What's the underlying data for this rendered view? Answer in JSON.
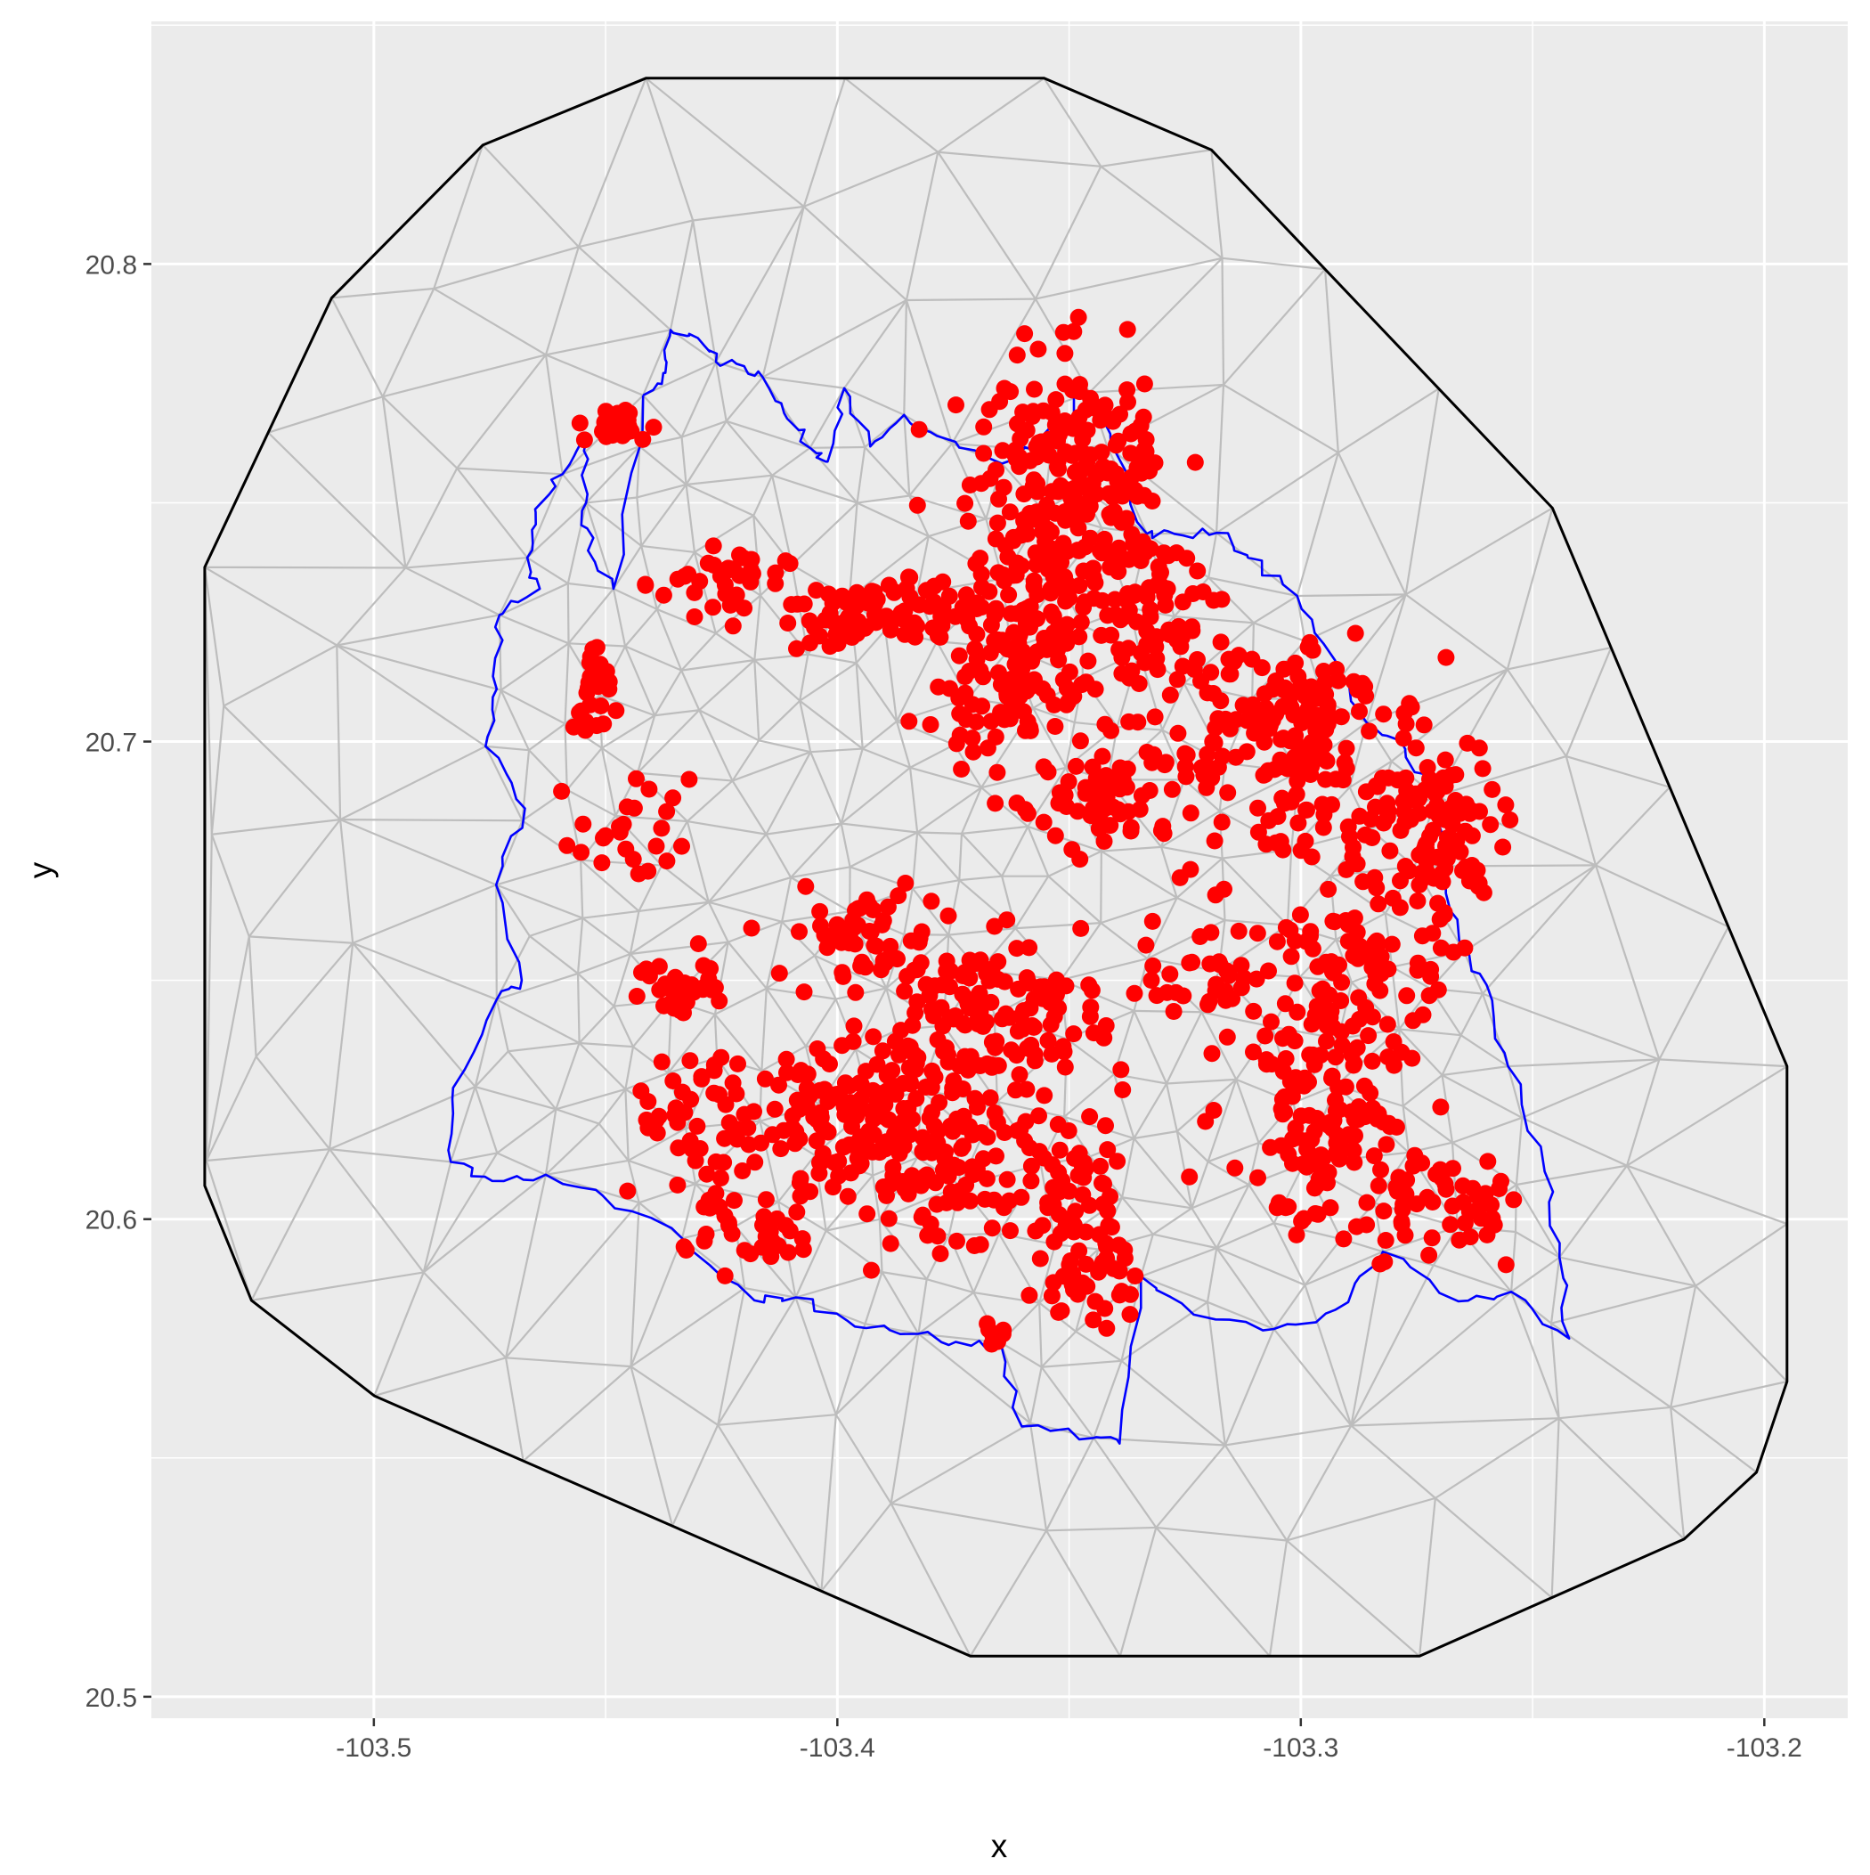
{
  "chart_data": {
    "type": "scatter",
    "xlabel": "x",
    "ylabel": "y",
    "xlim": [
      -103.548,
      -103.182
    ],
    "ylim": [
      20.4955,
      20.8508
    ],
    "x_ticks": [
      -103.5,
      -103.4,
      -103.3,
      -103.2
    ],
    "x_tick_labels": [
      "-103.5",
      "-103.4",
      "-103.3",
      "-103.2"
    ],
    "y_ticks": [
      20.5,
      20.6,
      20.7,
      20.8
    ],
    "y_tick_labels": [
      "20.5",
      "20.6",
      "20.7",
      "20.8"
    ],
    "grid": true,
    "legend": "none",
    "colors": {
      "panel": "#ebebeb",
      "grid": "#ffffff",
      "mesh": "#bdbdbd",
      "hull": "#000000",
      "boundary": "#0000ff",
      "points": "#ff0000"
    },
    "series": [
      {
        "role": "outer-hull",
        "kind": "polygon",
        "x": [
          -103.5365,
          -103.5091,
          -103.4765,
          -103.4413,
          -103.3554,
          -103.3193,
          -103.2457,
          -103.1951,
          -103.1951,
          -103.2017,
          -103.2173,
          -103.2744,
          -103.3713,
          -103.4999,
          -103.5264,
          -103.5365
        ],
        "y": [
          20.7365,
          20.7929,
          20.8249,
          20.8389,
          20.8389,
          20.8239,
          20.7489,
          20.632,
          20.566,
          20.547,
          20.533,
          20.5085,
          20.5085,
          20.563,
          20.583,
          20.607
        ]
      },
      {
        "role": "region-boundary",
        "kind": "line",
        "x": [
          -103.4419,
          -103.4371,
          -103.436,
          -103.4301,
          -103.4262,
          -103.4201,
          -103.4161,
          -103.4115,
          -103.4059,
          -103.4021,
          -103.3985,
          -103.3929,
          -103.3856,
          -103.3785,
          -103.3645,
          -103.3567,
          -103.3456,
          -103.3391,
          -103.3332,
          -103.3273,
          -103.3182,
          -103.3114,
          -103.3008,
          -103.2926,
          -103.2858,
          -103.2775,
          -103.2708,
          -103.2687,
          -103.2648,
          -103.2595,
          -103.2553,
          -103.2474,
          -103.2442,
          -103.2421,
          -103.2546,
          -103.266,
          -103.2823,
          -103.2926,
          -103.3058,
          -103.3231,
          -103.3345,
          -103.3391,
          -103.3447,
          -103.3602,
          -103.3648,
          -103.3711,
          -103.3825,
          -103.3962,
          -103.409,
          -103.4179,
          -103.4335,
          -103.4507,
          -103.4629,
          -103.4745,
          -103.4834,
          -103.4829,
          -103.4735,
          -103.4681,
          -103.4736,
          -103.4674,
          -103.4759,
          -103.4735,
          -103.4729,
          -103.4642,
          -103.4669,
          -103.4651,
          -103.4593,
          -103.454,
          -103.4542,
          -103.4538,
          -103.4483,
          -103.4419
        ],
        "y": [
          20.7725,
          20.7772,
          20.7862,
          20.7845,
          20.7795,
          20.7786,
          20.7763,
          20.7688,
          20.7615,
          20.7586,
          20.774,
          20.7618,
          20.7684,
          20.764,
          20.7582,
          20.763,
          20.7731,
          20.759,
          20.7435,
          20.7435,
          20.7437,
          20.7385,
          20.7305,
          20.717,
          20.704,
          20.6985,
          20.6886,
          20.671,
          20.656,
          20.648,
          20.632,
          20.61,
          20.592,
          20.575,
          20.5848,
          20.5828,
          20.5932,
          20.581,
          20.577,
          20.58,
          20.588,
          20.553,
          20.5542,
          20.5566,
          20.5742,
          20.5735,
          20.576,
          20.5775,
          20.5836,
          20.583,
          20.596,
          20.605,
          20.6093,
          20.608,
          20.612,
          20.6275,
          20.646,
          20.65,
          20.67,
          20.686,
          20.699,
          20.711,
          20.7265,
          20.732,
          20.7385,
          20.748,
          20.756,
          20.764,
          20.75,
          20.74,
          20.732,
          20.7725
        ]
      },
      {
        "role": "points",
        "kind": "scatter",
        "clusters": [
          {
            "cx": -103.352,
            "cy": 20.745,
            "sx": 0.01,
            "sy": 0.017,
            "n": 260
          },
          {
            "cx": -103.34,
            "cy": 20.76,
            "sx": 0.007,
            "sy": 0.006,
            "n": 40
          },
          {
            "cx": -103.365,
            "cy": 20.711,
            "sx": 0.01,
            "sy": 0.007,
            "n": 70
          },
          {
            "cx": -103.385,
            "cy": 20.728,
            "sx": 0.012,
            "sy": 0.004,
            "n": 60
          },
          {
            "cx": -103.332,
            "cy": 20.728,
            "sx": 0.008,
            "sy": 0.008,
            "n": 60
          },
          {
            "cx": -103.305,
            "cy": 20.708,
            "sx": 0.011,
            "sy": 0.008,
            "n": 110
          },
          {
            "cx": -103.272,
            "cy": 20.681,
            "sx": 0.008,
            "sy": 0.01,
            "n": 110
          },
          {
            "cx": -103.285,
            "cy": 20.655,
            "sx": 0.008,
            "sy": 0.007,
            "n": 60
          },
          {
            "cx": -103.34,
            "cy": 20.69,
            "sx": 0.011,
            "sy": 0.006,
            "n": 80
          },
          {
            "cx": -103.3,
            "cy": 20.69,
            "sx": 0.008,
            "sy": 0.012,
            "n": 60
          },
          {
            "cx": -103.32,
            "cy": 20.651,
            "sx": 0.015,
            "sy": 0.008,
            "n": 60
          },
          {
            "cx": -103.292,
            "cy": 20.63,
            "sx": 0.01,
            "sy": 0.01,
            "n": 90
          },
          {
            "cx": -103.296,
            "cy": 20.612,
            "sx": 0.01,
            "sy": 0.008,
            "n": 60
          },
          {
            "cx": -103.276,
            "cy": 20.602,
            "sx": 0.008,
            "sy": 0.006,
            "n": 30
          },
          {
            "cx": -103.262,
            "cy": 20.604,
            "sx": 0.004,
            "sy": 0.006,
            "n": 20
          },
          {
            "cx": -103.382,
            "cy": 20.62,
            "sx": 0.012,
            "sy": 0.012,
            "n": 220
          },
          {
            "cx": -103.35,
            "cy": 20.608,
            "sx": 0.006,
            "sy": 0.008,
            "n": 50
          },
          {
            "cx": -103.345,
            "cy": 20.588,
            "sx": 0.005,
            "sy": 0.006,
            "n": 40
          },
          {
            "cx": -103.37,
            "cy": 20.65,
            "sx": 0.008,
            "sy": 0.006,
            "n": 60
          },
          {
            "cx": -103.353,
            "cy": 20.64,
            "sx": 0.006,
            "sy": 0.005,
            "n": 35
          },
          {
            "cx": -103.395,
            "cy": 20.66,
            "sx": 0.008,
            "sy": 0.005,
            "n": 50
          },
          {
            "cx": -103.405,
            "cy": 20.623,
            "sx": 0.01,
            "sy": 0.006,
            "n": 60
          },
          {
            "cx": -103.43,
            "cy": 20.615,
            "sx": 0.007,
            "sy": 0.01,
            "n": 50
          },
          {
            "cx": -103.418,
            "cy": 20.596,
            "sx": 0.007,
            "sy": 0.004,
            "n": 25
          },
          {
            "cx": -103.433,
            "cy": 20.648,
            "sx": 0.005,
            "sy": 0.004,
            "n": 30
          },
          {
            "cx": -103.425,
            "cy": 20.733,
            "sx": 0.007,
            "sy": 0.004,
            "n": 35
          },
          {
            "cx": -103.4,
            "cy": 20.725,
            "sx": 0.006,
            "sy": 0.003,
            "n": 30
          },
          {
            "cx": -103.453,
            "cy": 20.709,
            "sx": 0.002,
            "sy": 0.006,
            "n": 25
          },
          {
            "cx": -103.444,
            "cy": 20.68,
            "sx": 0.006,
            "sy": 0.006,
            "n": 25
          },
          {
            "cx": -103.448,
            "cy": 20.766,
            "sx": 0.004,
            "sy": 0.002,
            "n": 25
          },
          {
            "cx": -103.365,
            "cy": 20.576,
            "sx": 0.003,
            "sy": 0.001,
            "n": 10
          }
        ]
      }
    ]
  }
}
